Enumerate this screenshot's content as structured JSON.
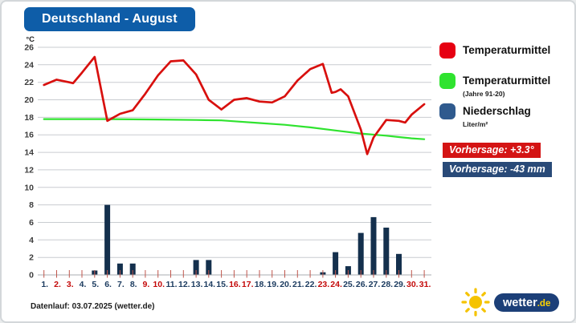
{
  "title": "Deutschland - August",
  "banner_color": "#0e5da8",
  "legend": [
    {
      "label": "Temperaturmittel",
      "sublabel": "",
      "color": "#e60012"
    },
    {
      "label": "Temperaturmittel",
      "sublabel": "(Jahre 91-20)",
      "color": "#2fe32f"
    },
    {
      "label": "Niederschlag",
      "sublabel": "Liter/m²",
      "color": "#2f5a8e"
    }
  ],
  "badges": [
    {
      "text": "Vorhersage: +3.3°",
      "bg": "#d41414"
    },
    {
      "text": "Vorhersage: -43 mm",
      "bg": "#294a78"
    }
  ],
  "footer": "Datenlauf: 03.07.2025 (wetter.de)",
  "logo": {
    "word": "wetter",
    "suffix": ".de"
  },
  "chart_data": {
    "type": "line+bar",
    "title": "Deutschland - August",
    "ylabel": "°C",
    "ylim": [
      0,
      26
    ],
    "yticks": [
      0,
      2,
      4,
      6,
      8,
      10,
      12,
      14,
      16,
      18,
      20,
      22,
      24,
      26
    ],
    "x_labels": [
      "1.",
      "2.",
      "3.",
      "4.",
      "5.",
      "6.",
      "7.",
      "8.",
      "9.",
      "10.",
      "11.",
      "12.",
      "13.",
      "14.",
      "15.",
      "16.",
      "17.",
      "18.",
      "19.",
      "20.",
      "21.",
      "22.",
      "23.",
      "24.",
      "25.",
      "26.",
      "27.",
      "28.",
      "29.",
      "30.",
      "31."
    ],
    "weekend_days": [
      2,
      3,
      9,
      10,
      16,
      17,
      23,
      24,
      30,
      31
    ],
    "xlabel_color": "#1d3c60",
    "xlabel_weekend_color": "#c40a0a",
    "grid": true,
    "legend_position": "right",
    "series": [
      {
        "id": "temp",
        "name": "Temperaturmittel",
        "type": "line",
        "color": "#d8100e",
        "unit": "°C",
        "points": [
          [
            1,
            21.7
          ],
          [
            2,
            22.3
          ],
          [
            3,
            22.0
          ],
          [
            3.3,
            21.9
          ],
          [
            4,
            23.1
          ],
          [
            5,
            24.9
          ],
          [
            6,
            17.6
          ],
          [
            7,
            18.4
          ],
          [
            8,
            18.8
          ],
          [
            9,
            20.7
          ],
          [
            10,
            22.8
          ],
          [
            11,
            24.4
          ],
          [
            12,
            24.5
          ],
          [
            13,
            22.9
          ],
          [
            14,
            20.0
          ],
          [
            15,
            18.9
          ],
          [
            16,
            20.0
          ],
          [
            17,
            20.2
          ],
          [
            18,
            19.8
          ],
          [
            19,
            19.7
          ],
          [
            20,
            20.4
          ],
          [
            21,
            22.2
          ],
          [
            22,
            23.5
          ],
          [
            23,
            24.1
          ],
          [
            23.7,
            20.8
          ],
          [
            24,
            20.9
          ],
          [
            24.4,
            21.2
          ],
          [
            25,
            20.4
          ],
          [
            26,
            16.6
          ],
          [
            26.5,
            13.8
          ],
          [
            27,
            15.7
          ],
          [
            28,
            17.7
          ],
          [
            29,
            17.6
          ],
          [
            29.5,
            17.4
          ],
          [
            30,
            18.3
          ],
          [
            31,
            19.5
          ]
        ]
      },
      {
        "id": "climate",
        "name": "Temperaturmittel (Jahre 91-20)",
        "type": "line",
        "color": "#2fe32f",
        "unit": "°C",
        "points": [
          [
            1,
            17.8
          ],
          [
            6,
            17.8
          ],
          [
            10,
            17.75
          ],
          [
            13,
            17.7
          ],
          [
            15,
            17.65
          ],
          [
            16,
            17.55
          ],
          [
            18,
            17.35
          ],
          [
            20,
            17.15
          ],
          [
            22,
            16.85
          ],
          [
            24,
            16.5
          ],
          [
            26,
            16.15
          ],
          [
            28,
            15.9
          ],
          [
            29,
            15.75
          ],
          [
            30,
            15.6
          ],
          [
            31,
            15.5
          ]
        ]
      },
      {
        "id": "precip",
        "name": "Niederschlag (Liter/m²)",
        "type": "bar",
        "color": "#14304d",
        "unit": "Liter/m²",
        "points": [
          [
            5,
            0.5
          ],
          [
            6,
            8.0
          ],
          [
            7,
            1.3
          ],
          [
            8,
            1.3
          ],
          [
            13,
            1.7
          ],
          [
            14,
            1.7
          ],
          [
            23,
            0.3
          ],
          [
            24,
            2.6
          ],
          [
            25,
            1.0
          ],
          [
            26,
            4.8
          ],
          [
            27,
            6.6
          ],
          [
            28,
            5.4
          ],
          [
            29,
            2.4
          ]
        ]
      }
    ]
  }
}
